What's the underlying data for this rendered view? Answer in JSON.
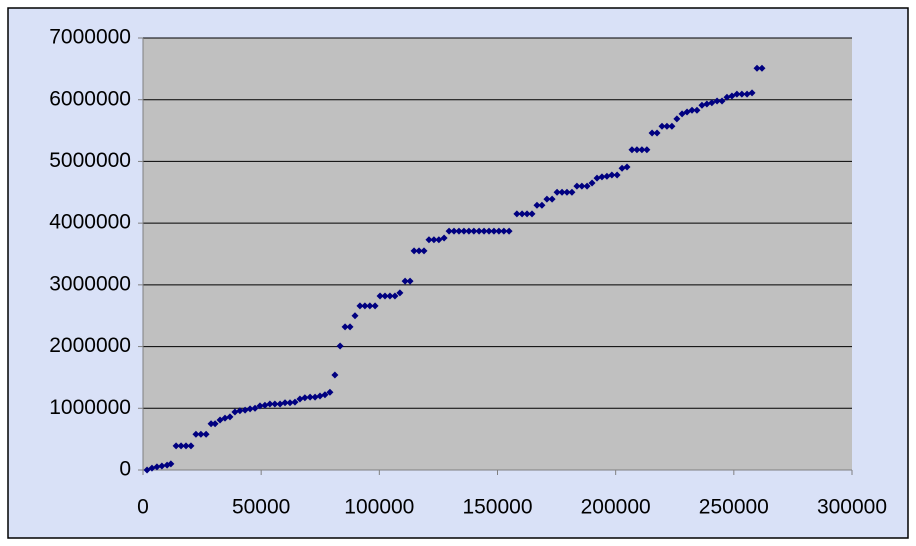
{
  "chart_data": {
    "type": "scatter",
    "color": "#000080",
    "grid": true,
    "xlim": [
      0,
      300000
    ],
    "xticks": [
      0,
      50000,
      100000,
      150000,
      200000,
      250000,
      300000
    ],
    "ylim": [
      0,
      7000000
    ],
    "yticks": [
      0,
      1000000,
      2000000,
      3000000,
      4000000,
      5000000,
      6000000,
      7000000
    ],
    "x": [
      1700,
      3800,
      5900,
      8000,
      10200,
      11800,
      14000,
      16100,
      18200,
      20300,
      22400,
      24500,
      26700,
      28800,
      30500,
      32600,
      34700,
      36800,
      38900,
      41000,
      43200,
      45300,
      47400,
      49500,
      51600,
      53700,
      55800,
      58000,
      60100,
      62200,
      64300,
      66400,
      68500,
      70700,
      72800,
      74900,
      77000,
      79100,
      81200,
      83400,
      85500,
      87600,
      89700,
      91800,
      93900,
      96000,
      98200,
      100300,
      102400,
      104500,
      106600,
      108700,
      110900,
      113000,
      114700,
      116800,
      118900,
      121000,
      123100,
      125200,
      127400,
      129500,
      131600,
      133700,
      135800,
      137900,
      140000,
      142200,
      144300,
      146400,
      148500,
      150600,
      152700,
      154900,
      158200,
      160400,
      162500,
      164600,
      166700,
      168800,
      170900,
      173100,
      175200,
      177300,
      179400,
      181500,
      183600,
      185700,
      187900,
      190000,
      192100,
      194200,
      196300,
      198400,
      200600,
      202700,
      204800,
      206900,
      209000,
      211100,
      213200,
      215400,
      217500,
      219600,
      221700,
      223800,
      225900,
      228100,
      230200,
      232300,
      234400,
      236500,
      238600,
      240700,
      242900,
      245000,
      247100,
      249200,
      251300,
      253400,
      255600,
      257700,
      259800,
      261900
    ],
    "values": [
      0,
      30000,
      50000,
      65000,
      80000,
      100000,
      390000,
      390000,
      390000,
      390000,
      580000,
      580000,
      580000,
      750000,
      750000,
      810000,
      840000,
      860000,
      940000,
      960000,
      970000,
      990000,
      1000000,
      1040000,
      1050000,
      1070000,
      1070000,
      1070000,
      1090000,
      1090000,
      1100000,
      1150000,
      1170000,
      1180000,
      1180000,
      1200000,
      1220000,
      1260000,
      1540000,
      2010000,
      2320000,
      2320000,
      2500000,
      2660000,
      2660000,
      2660000,
      2660000,
      2820000,
      2820000,
      2820000,
      2820000,
      2870000,
      3060000,
      3060000,
      3550000,
      3550000,
      3550000,
      3730000,
      3730000,
      3730000,
      3760000,
      3870000,
      3870000,
      3870000,
      3870000,
      3870000,
      3870000,
      3870000,
      3870000,
      3870000,
      3870000,
      3870000,
      3870000,
      3870000,
      4150000,
      4150000,
      4150000,
      4150000,
      4290000,
      4290000,
      4390000,
      4390000,
      4500000,
      4500000,
      4500000,
      4500000,
      4600000,
      4600000,
      4600000,
      4650000,
      4730000,
      4750000,
      4760000,
      4780000,
      4780000,
      4890000,
      4910000,
      5190000,
      5190000,
      5190000,
      5190000,
      5460000,
      5460000,
      5570000,
      5570000,
      5570000,
      5690000,
      5770000,
      5800000,
      5830000,
      5830000,
      5910000,
      5930000,
      5950000,
      5980000,
      5980000,
      6040000,
      6060000,
      6090000,
      6090000,
      6090000,
      6110000,
      6510000,
      6510000
    ]
  }
}
